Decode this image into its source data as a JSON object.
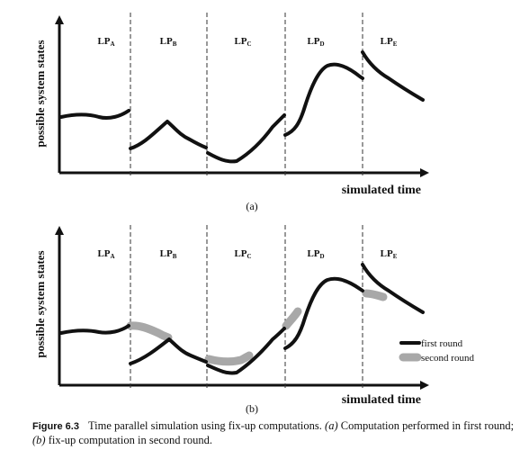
{
  "panels": [
    {
      "label": "(a)",
      "ylabel": "possible system states",
      "xlabel": "simulated time",
      "lps": [
        {
          "main": "LP",
          "sub": "A"
        },
        {
          "main": "LP",
          "sub": "B"
        },
        {
          "main": "LP",
          "sub": "C"
        },
        {
          "main": "LP",
          "sub": "D"
        },
        {
          "main": "LP",
          "sub": "E"
        }
      ],
      "legend": null
    },
    {
      "label": "(b)",
      "ylabel": "possible system states",
      "xlabel": "simulated time",
      "lps": [
        {
          "main": "LP",
          "sub": "A"
        },
        {
          "main": "LP",
          "sub": "B"
        },
        {
          "main": "LP",
          "sub": "C"
        },
        {
          "main": "LP",
          "sub": "D"
        },
        {
          "main": "LP",
          "sub": "E"
        }
      ],
      "legend": {
        "first": "first round",
        "second": "second round"
      }
    }
  ],
  "caption": {
    "label": "Figure 6.3",
    "text_1": "Time parallel simulation using fix-up computations. ",
    "a_label": "(a)",
    "text_2": " Computation performed in first round; ",
    "b_label": "(b)",
    "text_3": " fix-up computation in second round."
  },
  "colors": {
    "ink": "#111111",
    "fixup": "#a8a8a8"
  }
}
